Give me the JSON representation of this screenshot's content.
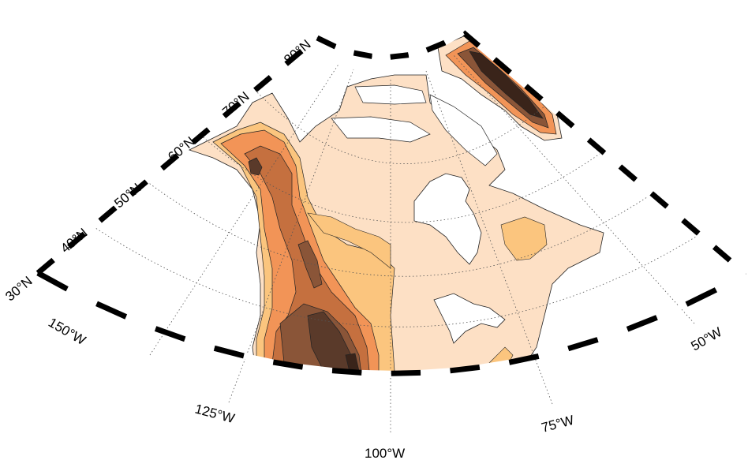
{
  "map": {
    "projection": "conic (North America, elevation contours)",
    "lat_labels": [
      {
        "id": "lat-30",
        "text": "30°N"
      },
      {
        "id": "lat-40",
        "text": "40°N"
      },
      {
        "id": "lat-50",
        "text": "50°N"
      },
      {
        "id": "lat-60",
        "text": "60°N"
      },
      {
        "id": "lat-70",
        "text": "70°N"
      },
      {
        "id": "lat-80",
        "text": "80°N"
      }
    ],
    "lon_labels": [
      {
        "id": "lon-150",
        "text": "150°W"
      },
      {
        "id": "lon-125",
        "text": "125°W"
      },
      {
        "id": "lon-100",
        "text": "100°W"
      },
      {
        "id": "lon-75",
        "text": "75°W"
      },
      {
        "id": "lon-50",
        "text": "50°W"
      }
    ],
    "colors": {
      "water": "#ffffff",
      "level_1": "#fde0c5",
      "level_2": "#fbc57e",
      "level_3": "#f29457",
      "level_4": "#c5703f",
      "level_5": "#8a5538",
      "level_6": "#5a3a2a",
      "level_7": "#3a241a",
      "frame_dark": "#000000",
      "frame_light": "#ffffff",
      "gridline": "#555555"
    }
  }
}
